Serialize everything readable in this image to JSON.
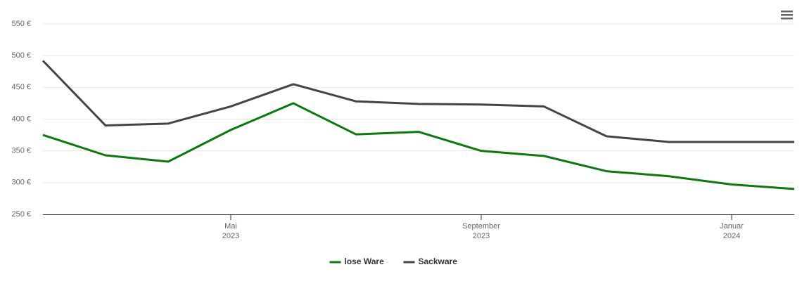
{
  "chart_data": {
    "type": "line",
    "x": [
      "2023-02",
      "2023-03",
      "2023-04",
      "2023-05",
      "2023-06",
      "2023-07",
      "2023-08",
      "2023-09",
      "2023-10",
      "2023-11",
      "2023-12",
      "2024-01",
      "2024-02"
    ],
    "xlim": [
      "2023-02",
      "2024-02"
    ],
    "xticks": [
      {
        "value": "2023-05",
        "label": "Mai",
        "sublabel": "2023"
      },
      {
        "value": "2023-09",
        "label": "September",
        "sublabel": "2023"
      },
      {
        "value": "2024-01",
        "label": "Januar",
        "sublabel": "2024"
      }
    ],
    "ylim": [
      250,
      550
    ],
    "yticks": [
      {
        "value": 250,
        "label": "250 €"
      },
      {
        "value": 300,
        "label": "300 €"
      },
      {
        "value": 350,
        "label": "350 €"
      },
      {
        "value": 400,
        "label": "400 €"
      },
      {
        "value": 450,
        "label": "450 €"
      },
      {
        "value": 500,
        "label": "500 €"
      },
      {
        "value": 550,
        "label": "550 €"
      }
    ],
    "grid": true,
    "legend": "bottom",
    "series": [
      {
        "name": "lose Ware",
        "color": "#0a7a0a",
        "values": [
          375,
          343,
          333,
          383,
          425,
          376,
          380,
          350,
          342,
          318,
          310,
          297,
          290
        ]
      },
      {
        "name": "Sackware",
        "color": "#434348",
        "values": [
          492,
          390,
          393,
          420,
          455,
          428,
          424,
          423,
          420,
          373,
          364,
          364,
          364
        ]
      }
    ]
  }
}
